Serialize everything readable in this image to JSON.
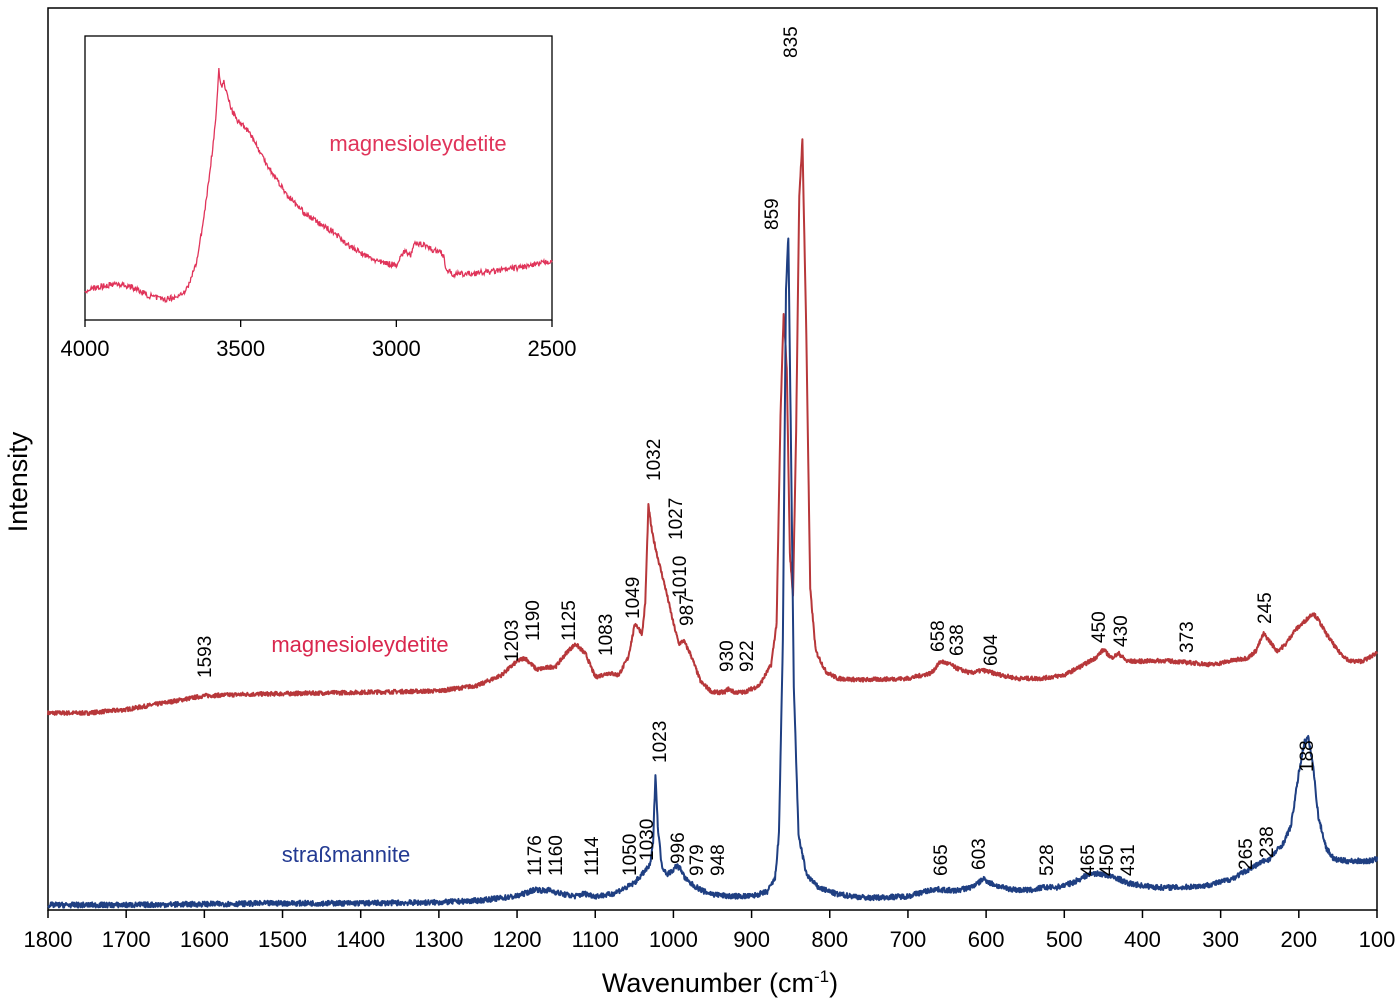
{
  "chart_data": {
    "type": "line",
    "xlabel": "Wavenumber (cm",
    "xlabel_sup": "-1",
    "xlabel_end": ")",
    "ylabel": "Intensity",
    "xlim": [
      1800,
      100
    ],
    "reversed_x": true,
    "x_ticks": [
      "1800",
      "1700",
      "1600",
      "1500",
      "1400",
      "1300",
      "1200",
      "1100",
      "1000",
      "900",
      "800",
      "700",
      "600",
      "500",
      "400",
      "300",
      "200",
      "100"
    ],
    "series": [
      {
        "name": "magnesioleydetite",
        "color": "#b7373a",
        "label_color": "#d9274e",
        "baseline": 0.17,
        "points": [
          [
            1800,
            0.17
          ],
          [
            1750,
            0.17
          ],
          [
            1700,
            0.175
          ],
          [
            1650,
            0.185
          ],
          [
            1600,
            0.195
          ],
          [
            1550,
            0.197
          ],
          [
            1500,
            0.198
          ],
          [
            1400,
            0.2
          ],
          [
            1300,
            0.202
          ],
          [
            1250,
            0.21
          ],
          [
            1220,
            0.225
          ],
          [
            1200,
            0.245
          ],
          [
            1190,
            0.25
          ],
          [
            1175,
            0.233
          ],
          [
            1150,
            0.238
          ],
          [
            1135,
            0.26
          ],
          [
            1125,
            0.27
          ],
          [
            1112,
            0.255
          ],
          [
            1100,
            0.222
          ],
          [
            1083,
            0.228
          ],
          [
            1070,
            0.225
          ],
          [
            1058,
            0.25
          ],
          [
            1049,
            0.3
          ],
          [
            1040,
            0.285
          ],
          [
            1036,
            0.33
          ],
          [
            1032,
            0.47
          ],
          [
            1027,
            0.43
          ],
          [
            1020,
            0.395
          ],
          [
            1010,
            0.35
          ],
          [
            1000,
            0.3
          ],
          [
            993,
            0.27
          ],
          [
            987,
            0.275
          ],
          [
            978,
            0.255
          ],
          [
            965,
            0.215
          ],
          [
            950,
            0.2
          ],
          [
            935,
            0.2
          ],
          [
            930,
            0.205
          ],
          [
            922,
            0.2
          ],
          [
            910,
            0.2
          ],
          [
            890,
            0.21
          ],
          [
            875,
            0.24
          ],
          [
            868,
            0.3
          ],
          [
            863,
            0.6
          ],
          [
            859,
            0.75
          ],
          [
            855,
            0.67
          ],
          [
            851,
            0.4
          ],
          [
            847,
            0.34
          ],
          [
            843,
            0.58
          ],
          [
            839,
            0.92
          ],
          [
            835,
            1.0
          ],
          [
            830,
            0.72
          ],
          [
            825,
            0.35
          ],
          [
            818,
            0.26
          ],
          [
            805,
            0.23
          ],
          [
            790,
            0.22
          ],
          [
            760,
            0.218
          ],
          [
            700,
            0.22
          ],
          [
            670,
            0.228
          ],
          [
            658,
            0.245
          ],
          [
            645,
            0.24
          ],
          [
            638,
            0.235
          ],
          [
            620,
            0.228
          ],
          [
            604,
            0.232
          ],
          [
            585,
            0.226
          ],
          [
            560,
            0.22
          ],
          [
            530,
            0.22
          ],
          [
            500,
            0.225
          ],
          [
            475,
            0.24
          ],
          [
            460,
            0.25
          ],
          [
            450,
            0.262
          ],
          [
            440,
            0.25
          ],
          [
            430,
            0.256
          ],
          [
            420,
            0.245
          ],
          [
            400,
            0.245
          ],
          [
            373,
            0.246
          ],
          [
            340,
            0.243
          ],
          [
            310,
            0.24
          ],
          [
            290,
            0.245
          ],
          [
            265,
            0.25
          ],
          [
            255,
            0.26
          ],
          [
            245,
            0.285
          ],
          [
            238,
            0.275
          ],
          [
            228,
            0.26
          ],
          [
            218,
            0.268
          ],
          [
            205,
            0.29
          ],
          [
            195,
            0.3
          ],
          [
            182,
            0.315
          ],
          [
            175,
            0.305
          ],
          [
            165,
            0.285
          ],
          [
            150,
            0.26
          ],
          [
            135,
            0.245
          ],
          [
            120,
            0.245
          ],
          [
            110,
            0.25
          ],
          [
            100,
            0.258
          ]
        ],
        "peaks": [
          "1593",
          "1203",
          "1190",
          "1125",
          "1083",
          "1049",
          "1032",
          "1027",
          "1010",
          "987",
          "930",
          "922",
          "859",
          "835",
          "658",
          "638",
          "604",
          "450",
          "430",
          "373",
          "245"
        ]
      },
      {
        "name": "straßmannite",
        "color": "#1f3f82",
        "label_color": "#233a92",
        "baseline": 0.0,
        "points": [
          [
            1800,
            0.0
          ],
          [
            1700,
            0.0
          ],
          [
            1600,
            0.001
          ],
          [
            1500,
            0.002
          ],
          [
            1400,
            0.002
          ],
          [
            1300,
            0.003
          ],
          [
            1250,
            0.005
          ],
          [
            1200,
            0.01
          ],
          [
            1185,
            0.015
          ],
          [
            1176,
            0.018
          ],
          [
            1165,
            0.016
          ],
          [
            1160,
            0.017
          ],
          [
            1140,
            0.012
          ],
          [
            1125,
            0.01
          ],
          [
            1114,
            0.013
          ],
          [
            1100,
            0.01
          ],
          [
            1080,
            0.012
          ],
          [
            1060,
            0.02
          ],
          [
            1050,
            0.025
          ],
          [
            1040,
            0.035
          ],
          [
            1030,
            0.045
          ],
          [
            1026,
            0.07
          ],
          [
            1023,
            0.15
          ],
          [
            1020,
            0.09
          ],
          [
            1015,
            0.045
          ],
          [
            1008,
            0.035
          ],
          [
            1000,
            0.04
          ],
          [
            996,
            0.045
          ],
          [
            990,
            0.04
          ],
          [
            985,
            0.03
          ],
          [
            979,
            0.025
          ],
          [
            970,
            0.02
          ],
          [
            960,
            0.015
          ],
          [
            948,
            0.012
          ],
          [
            930,
            0.01
          ],
          [
            900,
            0.01
          ],
          [
            880,
            0.015
          ],
          [
            870,
            0.03
          ],
          [
            865,
            0.08
          ],
          [
            860,
            0.3
          ],
          [
            856,
            0.7
          ],
          [
            853,
            0.76
          ],
          [
            850,
            0.55
          ],
          [
            846,
            0.25
          ],
          [
            840,
            0.08
          ],
          [
            830,
            0.035
          ],
          [
            815,
            0.02
          ],
          [
            790,
            0.012
          ],
          [
            750,
            0.008
          ],
          [
            700,
            0.01
          ],
          [
            680,
            0.015
          ],
          [
            665,
            0.018
          ],
          [
            640,
            0.016
          ],
          [
            620,
            0.02
          ],
          [
            610,
            0.025
          ],
          [
            603,
            0.03
          ],
          [
            595,
            0.025
          ],
          [
            580,
            0.02
          ],
          [
            560,
            0.017
          ],
          [
            540,
            0.017
          ],
          [
            528,
            0.02
          ],
          [
            510,
            0.02
          ],
          [
            490,
            0.025
          ],
          [
            475,
            0.032
          ],
          [
            465,
            0.036
          ],
          [
            450,
            0.035
          ],
          [
            440,
            0.032
          ],
          [
            431,
            0.03
          ],
          [
            420,
            0.025
          ],
          [
            400,
            0.022
          ],
          [
            380,
            0.02
          ],
          [
            350,
            0.02
          ],
          [
            320,
            0.022
          ],
          [
            300,
            0.026
          ],
          [
            285,
            0.03
          ],
          [
            265,
            0.04
          ],
          [
            255,
            0.045
          ],
          [
            245,
            0.05
          ],
          [
            238,
            0.052
          ],
          [
            230,
            0.06
          ],
          [
            220,
            0.07
          ],
          [
            210,
            0.09
          ],
          [
            200,
            0.15
          ],
          [
            193,
            0.185
          ],
          [
            188,
            0.19
          ],
          [
            182,
            0.16
          ],
          [
            175,
            0.1
          ],
          [
            165,
            0.065
          ],
          [
            155,
            0.052
          ],
          [
            140,
            0.05
          ],
          [
            125,
            0.05
          ],
          [
            110,
            0.05
          ],
          [
            100,
            0.052
          ]
        ],
        "peaks": [
          "1176",
          "1160",
          "1114",
          "1050",
          "1030",
          "1023",
          "996",
          "979",
          "948",
          "665",
          "603",
          "528",
          "465",
          "450",
          "431",
          "265",
          "238",
          "188"
        ]
      }
    ],
    "inset": {
      "series_name": "magnesioleydetite",
      "color": "#e0345a",
      "xlim": [
        4000,
        2500
      ],
      "x_ticks": [
        "4000",
        "3500",
        "3000",
        "2500"
      ],
      "points": [
        [
          4000,
          0.05
        ],
        [
          3950,
          0.065
        ],
        [
          3900,
          0.08
        ],
        [
          3850,
          0.065
        ],
        [
          3800,
          0.03
        ],
        [
          3750,
          0.01
        ],
        [
          3700,
          0.025
        ],
        [
          3670,
          0.06
        ],
        [
          3640,
          0.18
        ],
        [
          3620,
          0.35
        ],
        [
          3600,
          0.55
        ],
        [
          3585,
          0.72
        ],
        [
          3575,
          0.88
        ],
        [
          3570,
          1.0
        ],
        [
          3562,
          0.93
        ],
        [
          3555,
          0.95
        ],
        [
          3545,
          0.9
        ],
        [
          3530,
          0.83
        ],
        [
          3510,
          0.78
        ],
        [
          3490,
          0.76
        ],
        [
          3470,
          0.73
        ],
        [
          3440,
          0.65
        ],
        [
          3400,
          0.56
        ],
        [
          3350,
          0.46
        ],
        [
          3300,
          0.39
        ],
        [
          3250,
          0.34
        ],
        [
          3200,
          0.3
        ],
        [
          3150,
          0.24
        ],
        [
          3100,
          0.2
        ],
        [
          3050,
          0.17
        ],
        [
          3000,
          0.16
        ],
        [
          2985,
          0.2
        ],
        [
          2970,
          0.22
        ],
        [
          2955,
          0.2
        ],
        [
          2940,
          0.25
        ],
        [
          2910,
          0.25
        ],
        [
          2880,
          0.22
        ],
        [
          2860,
          0.22
        ],
        [
          2848,
          0.2
        ],
        [
          2840,
          0.14
        ],
        [
          2820,
          0.12
        ],
        [
          2780,
          0.12
        ],
        [
          2700,
          0.13
        ],
        [
          2650,
          0.14
        ],
        [
          2600,
          0.15
        ],
        [
          2550,
          0.16
        ],
        [
          2500,
          0.18
        ]
      ]
    }
  }
}
